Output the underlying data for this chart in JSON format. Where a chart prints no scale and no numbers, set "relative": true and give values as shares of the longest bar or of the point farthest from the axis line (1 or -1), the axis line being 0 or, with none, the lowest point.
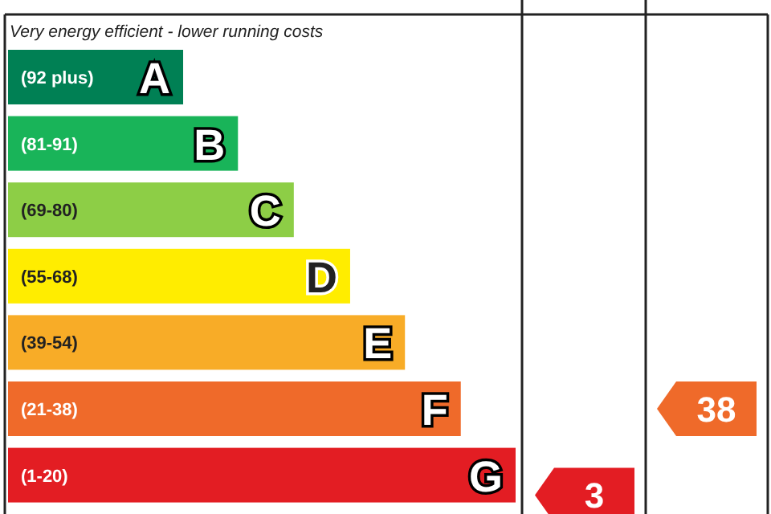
{
  "chart_data": {
    "type": "bar",
    "orientation": "horizontal",
    "relative": true,
    "title": "Very energy efficient - lower running costs",
    "categories": [
      "A",
      "B",
      "C",
      "D",
      "E",
      "F",
      "G"
    ],
    "values": [
      0.345,
      0.453,
      0.563,
      0.674,
      0.782,
      0.892,
      1
    ],
    "colors": [
      "#008054",
      "#19b459",
      "#8dce46",
      "#ffed00",
      "#f8ac27",
      "#ef6a2a",
      "#e31d23"
    ],
    "annotations": [
      "(92 plus)",
      "(81-91)",
      "(69-80)",
      "(55-68)",
      "(39-54)",
      "(21-38)",
      "(1-20)",
      "3",
      "38"
    ]
  }
}
